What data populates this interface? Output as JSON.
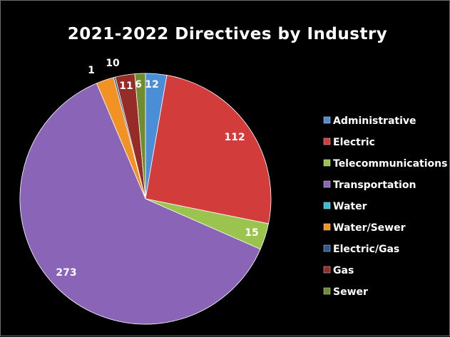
{
  "chart_data": {
    "type": "pie",
    "title": "2021-2022 Directives by Industry",
    "legend_position": "right",
    "slices": [
      {
        "name": "Administrative",
        "value": 12,
        "color": "#4a8ed8",
        "label": "12"
      },
      {
        "name": "Electric",
        "value": 112,
        "color": "#d23c3a",
        "label": "112"
      },
      {
        "name": "Telecommunications",
        "value": 15,
        "color": "#9bc44e",
        "label": "15"
      },
      {
        "name": "Transportation",
        "value": 273,
        "color": "#8a64b6",
        "label": "273"
      },
      {
        "name": "Water",
        "value": 0,
        "color": "#38bdd6",
        "label": ""
      },
      {
        "name": "Water/Sewer",
        "value": 10,
        "color": "#f39224",
        "label": "10"
      },
      {
        "name": "Electric/Gas",
        "value": 1,
        "color": "#2b5a8e",
        "label": "1"
      },
      {
        "name": "Gas",
        "value": 11,
        "color": "#952c28",
        "label": "11"
      },
      {
        "name": "Sewer",
        "value": 6,
        "color": "#6f8c2e",
        "label": "6"
      }
    ]
  }
}
